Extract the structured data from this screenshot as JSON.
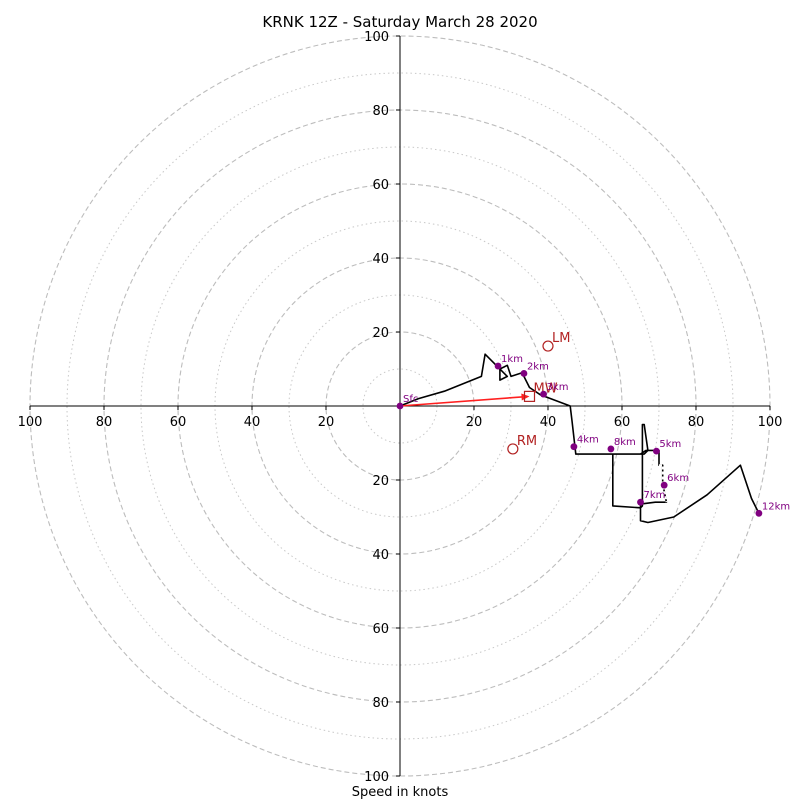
{
  "chart_data": {
    "type": "hodograph",
    "title": "KRNK 12Z - Saturday March 28 2020",
    "xlabel": "Speed in knots",
    "ylabel": "",
    "xlim": [
      -100,
      100
    ],
    "ylim": [
      -100,
      100
    ],
    "grid": true,
    "rings_major": [
      20,
      40,
      60,
      80,
      100
    ],
    "rings_minor": [
      10,
      30,
      50,
      70,
      90
    ],
    "x_tick_labels": [
      "100",
      "80",
      "60",
      "40",
      "20",
      "20",
      "40",
      "60",
      "80",
      "100"
    ],
    "x_tick_values": [
      -100,
      -80,
      -60,
      -40,
      -20,
      20,
      40,
      60,
      80,
      100
    ],
    "y_tick_labels": [
      "100",
      "80",
      "60",
      "40",
      "20",
      "20",
      "40",
      "60",
      "80",
      "100"
    ],
    "y_tick_values": [
      100,
      80,
      60,
      40,
      20,
      -20,
      -40,
      -60,
      -80,
      -100
    ],
    "trace": {
      "color": "#000000",
      "points": [
        [
          0,
          0
        ],
        [
          5,
          2
        ],
        [
          12,
          4
        ],
        [
          22,
          8
        ],
        [
          23,
          14
        ],
        [
          26,
          11
        ],
        [
          29,
          8
        ],
        [
          27,
          7
        ],
        [
          27,
          10
        ],
        [
          29,
          11
        ],
        [
          30,
          8
        ],
        [
          33,
          9
        ],
        [
          34,
          7
        ],
        [
          35,
          5
        ],
        [
          38,
          3
        ],
        [
          46,
          0
        ],
        [
          46.5,
          -4
        ],
        [
          47.5,
          -13
        ],
        [
          57,
          -13
        ],
        [
          66,
          -13
        ],
        [
          67,
          -12
        ],
        [
          66,
          -5
        ],
        [
          65.5,
          -5
        ],
        [
          65.5,
          -15
        ],
        [
          65.5,
          -27
        ],
        [
          65,
          -27.5
        ],
        [
          57.5,
          -27
        ],
        [
          57.5,
          -16
        ],
        [
          57.5,
          -13
        ],
        [
          65,
          -13
        ],
        [
          66.5,
          -12
        ],
        [
          70,
          -12
        ],
        [
          70,
          -16
        ],
        [
          71,
          -16
        ],
        [
          71,
          -21
        ],
        [
          72,
          -26
        ],
        [
          69,
          -26
        ],
        [
          65,
          -26.5
        ],
        [
          65,
          -31
        ],
        [
          67,
          -31.5
        ],
        [
          74,
          -30
        ],
        [
          83,
          -24
        ],
        [
          92,
          -16
        ],
        [
          95,
          -25
        ],
        [
          97,
          -29
        ]
      ],
      "dashed_segment": [
        [
          70,
          -16
        ],
        [
          71,
          -16
        ],
        [
          71,
          -21
        ],
        [
          72,
          -26
        ]
      ]
    },
    "height_markers": {
      "color": "#800080",
      "points": [
        {
          "label": "Sfc",
          "x": 0,
          "y": 0
        },
        {
          "label": "1km",
          "x": 26.5,
          "y": 10.8
        },
        {
          "label": "2km",
          "x": 33.5,
          "y": 8.8
        },
        {
          "label": "3km",
          "x": 38.8,
          "y": 3.2
        },
        {
          "label": "4km",
          "x": 47,
          "y": -11
        },
        {
          "label": "5km",
          "x": 69.3,
          "y": -12.2
        },
        {
          "label": "6km",
          "x": 71.4,
          "y": -21.4
        },
        {
          "label": "7km",
          "x": 65,
          "y": -26
        },
        {
          "label": "8km",
          "x": 57,
          "y": -11.6
        },
        {
          "label": "12km",
          "x": 97,
          "y": -29
        }
      ]
    },
    "storm_motion": {
      "color": "#b22222",
      "points": [
        {
          "label": "LM",
          "x": 40,
          "y": 16.2,
          "marker": "circle"
        },
        {
          "label": "RM",
          "x": 30.5,
          "y": -11.6,
          "marker": "circle"
        },
        {
          "label": "MW",
          "x": 35,
          "y": 2.6,
          "marker": "square"
        }
      ],
      "arrow": {
        "color": "#ff2020",
        "from": [
          0,
          0
        ],
        "to": [
          35,
          2.6
        ]
      }
    }
  }
}
